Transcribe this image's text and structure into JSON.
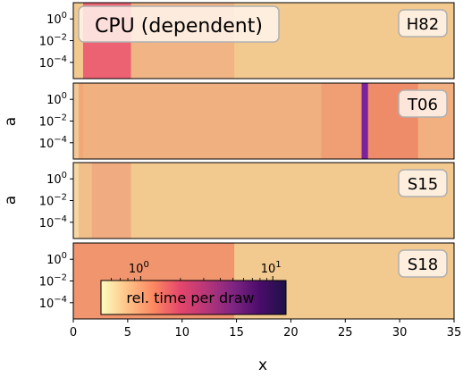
{
  "chart_data": {
    "type": "heatmap",
    "title": "CPU (dependent)",
    "xlabel": "x",
    "ylabel": "a",
    "xlim": [
      0,
      35
    ],
    "x_ticks": [
      "0",
      "5",
      "10",
      "15",
      "20",
      "25",
      "30",
      "35"
    ],
    "x_tick_values": [
      0,
      5,
      10,
      15,
      20,
      25,
      30,
      35
    ],
    "y_scale": "log",
    "ylim_exponent": [
      -5.5,
      1.5
    ],
    "y_tick_exponents": [
      0,
      -2,
      -4
    ],
    "y_ticks": [
      {
        "base": "10",
        "exp": "0"
      },
      {
        "base": "10",
        "exp": "−2"
      },
      {
        "base": "10",
        "exp": "−4"
      }
    ],
    "grid": false,
    "colorbar": {
      "label": "rel. time per draw",
      "scale": "log",
      "ticks": [
        {
          "base": "10",
          "exp": "0",
          "value": 1
        },
        {
          "base": "10",
          "exp": "1",
          "value": 10
        }
      ],
      "colormap": "magma_r",
      "colors": [
        "#fcfdbf",
        "#fec287",
        "#fb8761",
        "#e5466b",
        "#b63679",
        "#7f2582",
        "#4b0c6b",
        "#1d1147"
      ]
    },
    "panels": [
      {
        "label": "H82",
        "background": "#f2c98e",
        "regions": [
          {
            "x0": 0,
            "x1": 0.9,
            "color": "#f2c98e"
          },
          {
            "x0": 0.9,
            "x1": 5.3,
            "color": "#ec6272"
          },
          {
            "x0": 5.3,
            "x1": 14.8,
            "color": "#f0b485"
          }
        ]
      },
      {
        "label": "T06",
        "background": "#f0b080",
        "regions": [
          {
            "x0": 0,
            "x1": 0.5,
            "color": "#f4c896"
          },
          {
            "x0": 0.5,
            "x1": 0.9,
            "color": "#f0a878"
          },
          {
            "x0": 22.8,
            "x1": 26.5,
            "color": "#f09e74"
          },
          {
            "x0": 26.5,
            "x1": 27.1,
            "color": "#7a239c"
          },
          {
            "x0": 27.1,
            "x1": 31.7,
            "color": "#ee8c6a"
          },
          {
            "x0": 31.7,
            "x1": 35,
            "color": "#f2b080"
          }
        ]
      },
      {
        "label": "S15",
        "background": "#f2c98e",
        "regions": [
          {
            "x0": 0,
            "x1": 0.5,
            "color": "#f6d6a2"
          },
          {
            "x0": 0.5,
            "x1": 1.7,
            "color": "#f1bf8a"
          },
          {
            "x0": 1.7,
            "x1": 5.3,
            "color": "#f0ac80"
          }
        ]
      },
      {
        "label": "S18",
        "background": "#f2c98e",
        "regions": [
          {
            "x0": 0,
            "x1": 14.8,
            "color": "#f1956e"
          }
        ]
      }
    ]
  }
}
